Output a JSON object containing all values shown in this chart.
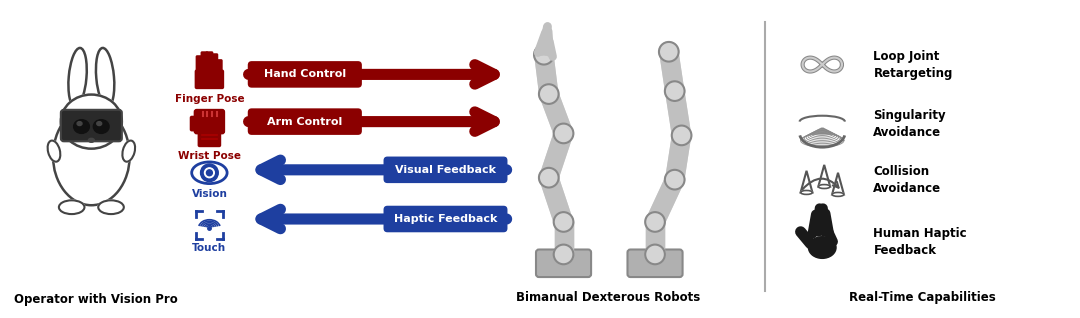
{
  "bg_color": "#ffffff",
  "dark_red": "#8B0000",
  "dark_blue": "#1e3fa0",
  "dark_gray": "#444444",
  "med_gray": "#888888",
  "light_gray": "#bbbbbb",
  "joint_gray": "#cccccc",
  "right_labels": [
    [
      "Loop Joint",
      "Retargeting"
    ],
    [
      "Singularity",
      "Avoidance"
    ],
    [
      "Collision",
      "Avoidance"
    ],
    [
      "Human Haptic",
      "Feedback"
    ]
  ],
  "bottom_labels": [
    "Operator with Vision Pro",
    "Bimanual Dexterous Robots",
    "Real-Time Capabilities"
  ],
  "control_labels": [
    "Hand Control",
    "Arm Control",
    "Visual Feedback",
    "Haptic Feedback"
  ],
  "icon_labels_red": [
    "Finger Pose",
    "Wrist Pose"
  ],
  "icon_labels_blue": [
    "Vision",
    "Touch"
  ],
  "figwidth": 10.8,
  "figheight": 3.18
}
